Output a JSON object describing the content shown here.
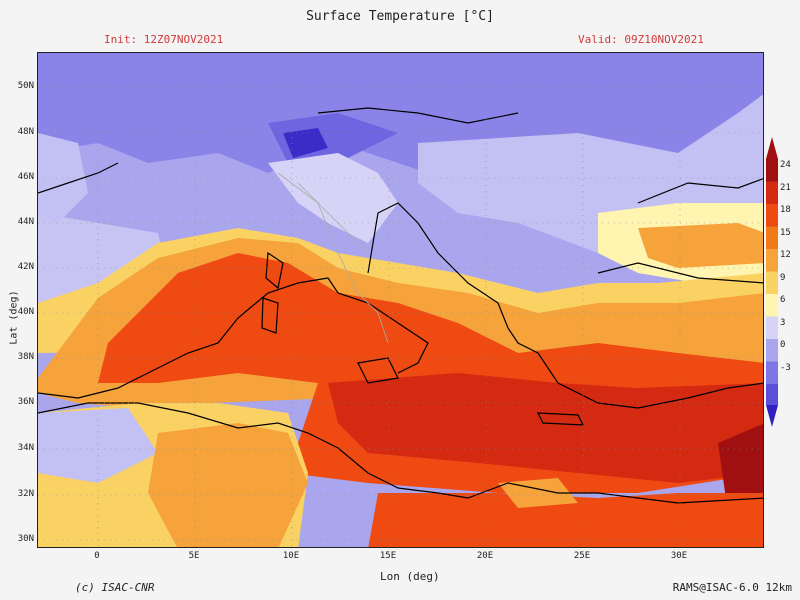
{
  "header": {
    "title": "Surface Temperature [°C]",
    "init": "Init: 12Z07NOV2021",
    "valid": "Valid: 09Z10NOV2021"
  },
  "axes": {
    "x_title": "Lon (deg)",
    "y_title": "Lat (deg)",
    "x_ticks": [
      "0",
      "5E",
      "10E",
      "15E",
      "20E",
      "25E",
      "30E"
    ],
    "y_ticks": [
      "50N",
      "48N",
      "46N",
      "44N",
      "42N",
      "40N",
      "38N",
      "36N",
      "34N",
      "32N",
      "30N"
    ]
  },
  "colorbar": {
    "labels": [
      "24",
      "21",
      "18",
      "15",
      "12",
      "9",
      "6",
      "3",
      "0",
      "-3"
    ],
    "colors": [
      "#a01010",
      "#d42a12",
      "#ee4a12",
      "#f07a18",
      "#f5a33a",
      "#fad264",
      "#fff4b0",
      "#d6d3f6",
      "#aaa6ee",
      "#7d76e4",
      "#5a50d8",
      "#3020c0"
    ]
  },
  "footer": {
    "credit": "(c) ISAC-CNR",
    "model": "RAMS@ISAC-6.0 12km"
  }
}
